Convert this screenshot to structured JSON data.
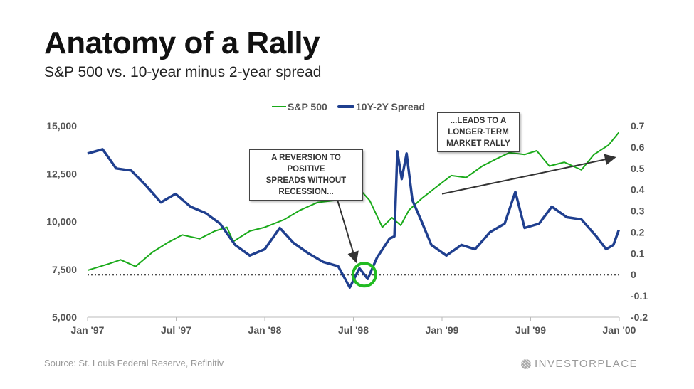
{
  "colors": {
    "sp500": "#1aaa1a",
    "spread": "#1f3f8f",
    "circle": "#22bb22"
  },
  "chart_data": {
    "type": "line",
    "title": "Anatomy of a Rally",
    "subtitle": "S&P 500 vs. 10-year minus 2-year spread",
    "source": "Source: St. Louis Federal Reserve, Refinitiv",
    "brand": "INVESTORPLACE",
    "legend": {
      "placement": "top",
      "entries": [
        "S&P 500",
        "10Y-2Y Spread"
      ]
    },
    "x_ticks": [
      "Jan '97",
      "Jul '97",
      "Jan '98",
      "Jul '98",
      "Jan '99",
      "Jul '99",
      "Jan '00"
    ],
    "y_left": {
      "ticks": [
        "5,000",
        "7,500",
        "10,000",
        "12,500",
        "15,000"
      ],
      "range": [
        5000,
        15000
      ]
    },
    "y_right": {
      "ticks": [
        "-0.2",
        "-0.1",
        "0",
        "0.1",
        "0.2",
        "0.3",
        "0.4",
        "0.5",
        "0.6",
        "0.7"
      ],
      "range": [
        -0.2,
        0.7
      ]
    },
    "zero_line": "dotted at spread 0",
    "series": [
      {
        "name": "S&P 500",
        "axis": "left",
        "points": [
          [
            "1997-01-01",
            7450
          ],
          [
            "1997-02-15",
            7800
          ],
          [
            "1997-03-10",
            8000
          ],
          [
            "1997-04-10",
            7650
          ],
          [
            "1997-05-15",
            8400
          ],
          [
            "1997-06-15",
            8900
          ],
          [
            "1997-07-15",
            9300
          ],
          [
            "1997-08-20",
            9100
          ],
          [
            "1997-09-20",
            9500
          ],
          [
            "1997-10-15",
            9700
          ],
          [
            "1997-10-28",
            8950
          ],
          [
            "1997-12-01",
            9500
          ],
          [
            "1998-01-01",
            9700
          ],
          [
            "1998-02-10",
            10100
          ],
          [
            "1998-03-15",
            10600
          ],
          [
            "1998-04-20",
            11000
          ],
          [
            "1998-05-25",
            11100
          ],
          [
            "1998-06-20",
            11200
          ],
          [
            "1998-07-15",
            11700
          ],
          [
            "1998-08-05",
            11100
          ],
          [
            "1998-08-31",
            9700
          ],
          [
            "1998-09-20",
            10200
          ],
          [
            "1998-10-08",
            9800
          ],
          [
            "1998-10-25",
            10600
          ],
          [
            "1998-11-20",
            11200
          ],
          [
            "1998-12-20",
            11800
          ],
          [
            "1999-01-20",
            12400
          ],
          [
            "1999-02-20",
            12300
          ],
          [
            "1999-03-25",
            12900
          ],
          [
            "1999-04-25",
            13300
          ],
          [
            "1999-05-20",
            13600
          ],
          [
            "1999-06-20",
            13500
          ],
          [
            "1999-07-15",
            13700
          ],
          [
            "1999-08-10",
            12900
          ],
          [
            "1999-09-10",
            13100
          ],
          [
            "1999-10-15",
            12700
          ],
          [
            "1999-11-10",
            13500
          ],
          [
            "1999-12-10",
            14000
          ],
          [
            "1999-12-31",
            14650
          ]
        ]
      },
      {
        "name": "10Y-2Y Spread",
        "axis": "right",
        "points": [
          [
            "1997-01-01",
            0.57
          ],
          [
            "1997-02-01",
            0.59
          ],
          [
            "1997-03-01",
            0.5
          ],
          [
            "1997-04-01",
            0.49
          ],
          [
            "1997-05-01",
            0.42
          ],
          [
            "1997-06-01",
            0.34
          ],
          [
            "1997-07-01",
            0.38
          ],
          [
            "1997-08-01",
            0.32
          ],
          [
            "1997-09-01",
            0.29
          ],
          [
            "1997-10-01",
            0.24
          ],
          [
            "1997-11-01",
            0.14
          ],
          [
            "1997-12-01",
            0.09
          ],
          [
            "1998-01-01",
            0.12
          ],
          [
            "1998-02-01",
            0.22
          ],
          [
            "1998-03-01",
            0.15
          ],
          [
            "1998-04-01",
            0.1
          ],
          [
            "1998-05-01",
            0.06
          ],
          [
            "1998-06-01",
            0.04
          ],
          [
            "1998-06-25",
            -0.06
          ],
          [
            "1998-07-15",
            0.03
          ],
          [
            "1998-08-01",
            -0.02
          ],
          [
            "1998-08-20",
            0.08
          ],
          [
            "1998-09-15",
            0.17
          ],
          [
            "1998-09-25",
            0.18
          ],
          [
            "1998-10-01",
            0.58
          ],
          [
            "1998-10-10",
            0.45
          ],
          [
            "1998-10-20",
            0.57
          ],
          [
            "1998-11-01",
            0.35
          ],
          [
            "1998-11-20",
            0.25
          ],
          [
            "1998-12-10",
            0.14
          ],
          [
            "1999-01-10",
            0.09
          ],
          [
            "1999-02-10",
            0.14
          ],
          [
            "1999-03-10",
            0.12
          ],
          [
            "1999-04-10",
            0.2
          ],
          [
            "1999-05-10",
            0.24
          ],
          [
            "1999-06-01",
            0.39
          ],
          [
            "1999-06-20",
            0.22
          ],
          [
            "1999-07-20",
            0.24
          ],
          [
            "1999-08-15",
            0.32
          ],
          [
            "1999-09-15",
            0.27
          ],
          [
            "1999-10-15",
            0.26
          ],
          [
            "1999-11-15",
            0.18
          ],
          [
            "1999-12-05",
            0.12
          ],
          [
            "1999-12-20",
            0.14
          ],
          [
            "1999-12-31",
            0.21
          ]
        ]
      }
    ],
    "annotations": [
      {
        "text_lines": [
          "A REVERSION TO POSITIVE",
          "SPREADS WITHOUT",
          "RECESSION..."
        ],
        "points_to": [
          "1998-07-10",
          0.0
        ]
      },
      {
        "text_lines": [
          "...LEADS TO A",
          "LONGER-TERM",
          "MARKET RALLY"
        ],
        "arrow_from": [
          "1999-01-01",
          0.38
        ],
        "arrow_to": [
          "1999-12-20",
          0.55
        ]
      }
    ],
    "highlight_circle": {
      "date": "1998-07-25",
      "spread": 0.0
    }
  }
}
